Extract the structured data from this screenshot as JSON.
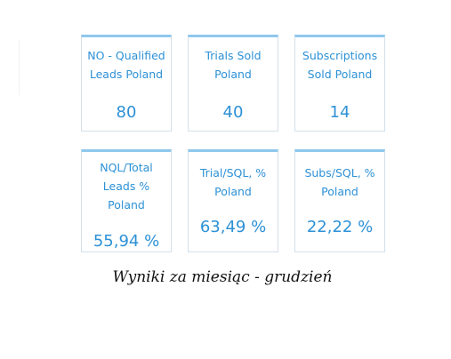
{
  "colors": {
    "accent": "#2d91d6",
    "tile_border": "#d3e0ea",
    "tile_top_border": "#8ec8ec",
    "caption": "#111111"
  },
  "kpi_tiles": [
    {
      "label_line1": "NO - Qualified",
      "label_line2": "Leads Poland",
      "label_line3": "",
      "value": "80"
    },
    {
      "label_line1": "Trials Sold",
      "label_line2": "Poland",
      "label_line3": "",
      "value": "40"
    },
    {
      "label_line1": "Subscriptions",
      "label_line2": "Sold Poland",
      "label_line3": "",
      "value": "14"
    },
    {
      "label_line1": "NQL/Total",
      "label_line2": "Leads %",
      "label_line3": "Poland",
      "value": "55,94 %"
    },
    {
      "label_line1": "Trial/SQL, %",
      "label_line2": "Poland",
      "label_line3": "",
      "value": "63,49 %"
    },
    {
      "label_line1": "Subs/SQL, %",
      "label_line2": "Poland",
      "label_line3": "",
      "value": "22,22 %"
    }
  ],
  "caption": "Wyniki za miesiąc - grudzień"
}
